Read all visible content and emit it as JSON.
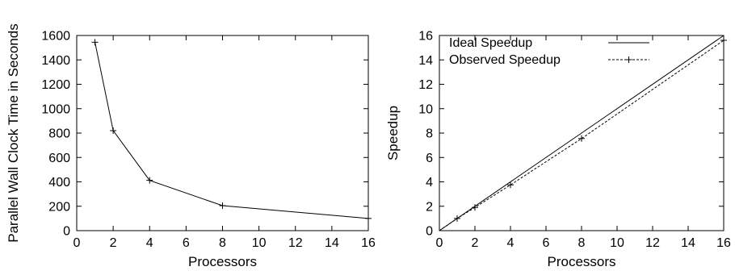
{
  "chart_data": [
    {
      "type": "line",
      "xlabel": "Processors",
      "ylabel": "Parallel Wall Clock Time in Seconds",
      "xlim": [
        0,
        16
      ],
      "ylim": [
        0,
        1600
      ],
      "xticks": [
        "0",
        "2",
        "4",
        "6",
        "8",
        "10",
        "12",
        "14",
        "16"
      ],
      "yticks": [
        "0",
        "200",
        "400",
        "600",
        "800",
        "1000",
        "1200",
        "1400",
        "1600"
      ],
      "grid": false,
      "series": [
        {
          "x": [
            1,
            2,
            4,
            8,
            16
          ],
          "y": [
            1545,
            820,
            412,
            205,
            100
          ],
          "marker": "+",
          "style": "solid",
          "color": "#000000"
        }
      ]
    },
    {
      "type": "line",
      "xlabel": "Processors",
      "ylabel": "Speedup",
      "xlim": [
        0,
        16
      ],
      "ylim": [
        0,
        16
      ],
      "xticks": [
        "0",
        "2",
        "4",
        "6",
        "8",
        "10",
        "12",
        "14",
        "16"
      ],
      "yticks": [
        "0",
        "2",
        "4",
        "6",
        "8",
        "10",
        "12",
        "14",
        "16"
      ],
      "grid": false,
      "legend_position": "top-left",
      "series": [
        {
          "name": "Ideal Speedup",
          "x": [
            0,
            16
          ],
          "y": [
            0,
            16
          ],
          "style": "solid",
          "color": "#000000"
        },
        {
          "name": "Observed Speedup",
          "x": [
            0,
            1,
            2,
            4,
            8,
            16
          ],
          "y": [
            0,
            1,
            1.9,
            3.75,
            7.55,
            15.6
          ],
          "marker": "+",
          "style": "dashed",
          "color": "#000000"
        }
      ]
    }
  ]
}
